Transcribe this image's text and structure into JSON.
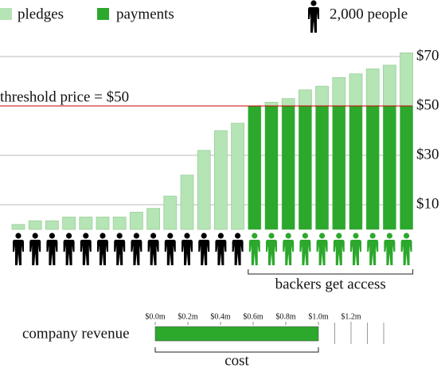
{
  "chart_data": {
    "type": "bar",
    "unit_label": "2,000 people",
    "series": [
      {
        "name": "pledges",
        "color": "#b5e4b5",
        "values": [
          2,
          3.5,
          3.5,
          5,
          5,
          5,
          5,
          7,
          8.5,
          13.5,
          22,
          32,
          40,
          43,
          50,
          51.5,
          53,
          56.5,
          58,
          61.5,
          63,
          65,
          66.5,
          71.5
        ]
      },
      {
        "name": "payments",
        "color": "#2ca82c",
        "values": [
          null,
          null,
          null,
          null,
          null,
          null,
          null,
          null,
          null,
          null,
          null,
          null,
          null,
          null,
          50,
          50,
          50,
          50,
          50,
          50,
          50,
          50,
          50,
          50
        ]
      }
    ],
    "ylim": [
      0,
      70
    ],
    "yticks": [
      {
        "value": 10,
        "label": "$10"
      },
      {
        "value": 30,
        "label": "$30"
      },
      {
        "value": 50,
        "label": "$50"
      },
      {
        "value": 70,
        "label": "$70"
      }
    ],
    "grid": true,
    "threshold": {
      "value": 50,
      "label": "threshold price = $50",
      "color": "#cc0000"
    },
    "access_label": "backers get access",
    "revenue": {
      "label": "company revenue",
      "value": 1.0,
      "color": "#2ca82c",
      "xlim": [
        0,
        1.4
      ],
      "xticks": [
        {
          "value": 0,
          "label": "$0.0m"
        },
        {
          "value": 0.2,
          "label": "$0.2m"
        },
        {
          "value": 0.4,
          "label": "$0.4m"
        },
        {
          "value": 0.6,
          "label": "$0.6m"
        },
        {
          "value": 0.8,
          "label": "$0.8m"
        },
        {
          "value": 1.0,
          "label": "$1.0m"
        },
        {
          "value": 1.2,
          "label": "$1.2m"
        }
      ],
      "minor_xticks": [
        1.1,
        1.2,
        1.3,
        1.4
      ],
      "cost": 1.0,
      "cost_label": "cost"
    }
  }
}
